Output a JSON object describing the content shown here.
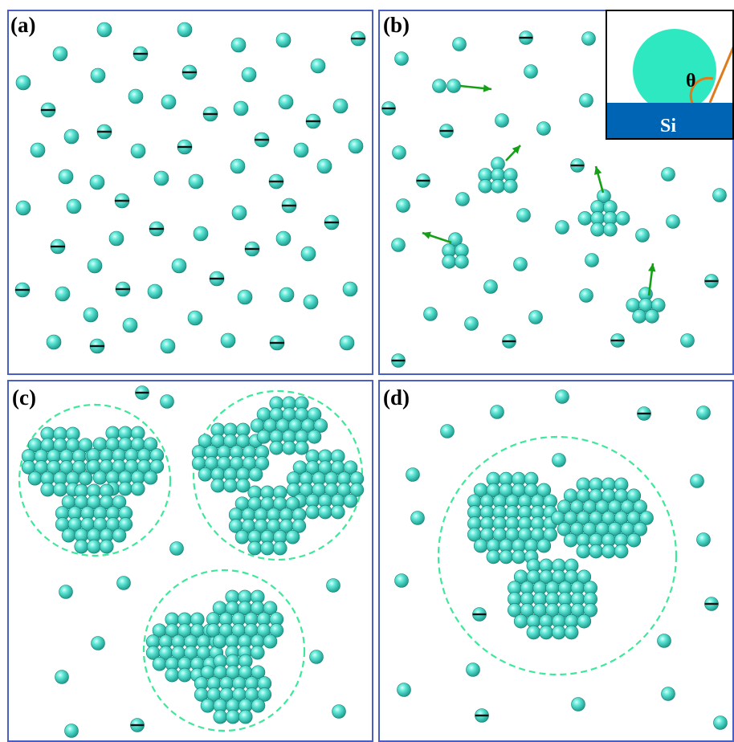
{
  "panels": [
    {
      "id": "a",
      "label": "(a)"
    },
    {
      "id": "b",
      "label": "(b)"
    },
    {
      "id": "c",
      "label": "(c)"
    },
    {
      "id": "d",
      "label": "(d)"
    }
  ],
  "inset": {
    "angle_symbol": "θ",
    "substrate_label": "Si"
  },
  "colors": {
    "panel_border": "#4a5fc1",
    "particle": "#48d8c8",
    "particle_dark": "#1a9a8c",
    "cluster_ring": "#3ee89a",
    "arrow": "#16a016",
    "substrate": "#0064b4",
    "droplet": "#2de8c0",
    "contact_line": "#e07a1a"
  }
}
